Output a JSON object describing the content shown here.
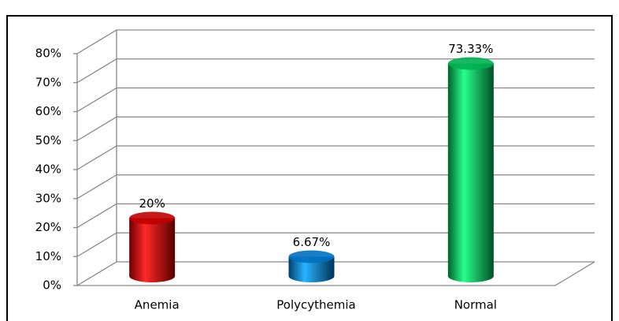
{
  "chart_data": {
    "type": "bar",
    "style": "3d-cylinder",
    "categories": [
      "Anemia",
      "Polycythemia",
      "Normal"
    ],
    "series": [
      {
        "name": null,
        "colors": [
          "#c00000",
          "#0070c0",
          "#00b050"
        ],
        "values": [
          20,
          6.67,
          73.33
        ],
        "value_labels": [
          "20%",
          "6.67%",
          "73.33%"
        ]
      }
    ],
    "ylim": [
      0,
      80
    ],
    "yticks": [
      {
        "value": 0,
        "label": "0%"
      },
      {
        "value": 10,
        "label": "10%"
      },
      {
        "value": 20,
        "label": "20%"
      },
      {
        "value": 30,
        "label": "30%"
      },
      {
        "value": 40,
        "label": "40%"
      },
      {
        "value": 50,
        "label": "50%"
      },
      {
        "value": 60,
        "label": "60%"
      },
      {
        "value": 70,
        "label": "70%"
      },
      {
        "value": 80,
        "label": "80%"
      }
    ],
    "grid": true
  }
}
